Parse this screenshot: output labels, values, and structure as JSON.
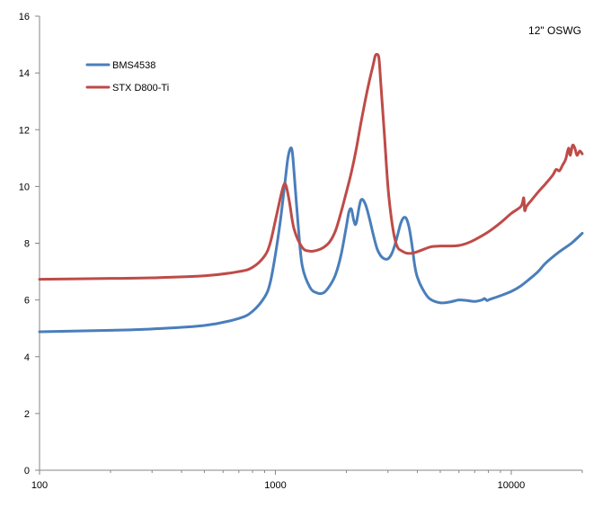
{
  "chart_data": {
    "type": "line",
    "title": "12\" OSWG",
    "xlabel": "",
    "ylabel": "",
    "x_scale": "log",
    "xlim": [
      100,
      20000
    ],
    "ylim": [
      0,
      16
    ],
    "x_ticks": [
      100,
      1000,
      10000
    ],
    "x_tick_labels": [
      "100",
      "1000",
      "10000"
    ],
    "y_ticks": [
      0,
      2,
      4,
      6,
      8,
      10,
      12,
      14,
      16
    ],
    "y_tick_labels": [
      "0",
      "2",
      "4",
      "6",
      "8",
      "10",
      "12",
      "14",
      "16"
    ],
    "grid": "off",
    "legend_position": "top-left",
    "series": [
      {
        "name": "BMS4538",
        "color": "#4a7ebb",
        "x": [
          100,
          200,
          300,
          500,
          700,
          800,
          900,
          950,
          1000,
          1050,
          1100,
          1130,
          1160,
          1180,
          1200,
          1250,
          1300,
          1400,
          1500,
          1600,
          1700,
          1800,
          1900,
          2000,
          2050,
          2100,
          2150,
          2200,
          2300,
          2400,
          2500,
          2600,
          2700,
          2800,
          2900,
          3000,
          3100,
          3200,
          3300,
          3400,
          3500,
          3600,
          3700,
          3800,
          3900,
          4000,
          4200,
          4500,
          5000,
          5500,
          6000,
          6500,
          7000,
          7500,
          7700,
          7900,
          8100,
          9000,
          10000,
          11000,
          12000,
          13000,
          14000,
          16000,
          18000,
          20000
        ],
        "y": [
          4.88,
          4.93,
          4.98,
          5.1,
          5.35,
          5.6,
          6.1,
          6.6,
          7.6,
          8.8,
          10.2,
          11.0,
          11.35,
          11.2,
          10.5,
          8.6,
          7.2,
          6.45,
          6.25,
          6.25,
          6.5,
          6.9,
          7.6,
          8.6,
          9.1,
          9.2,
          8.8,
          8.7,
          9.5,
          9.4,
          8.9,
          8.3,
          7.8,
          7.55,
          7.45,
          7.45,
          7.6,
          7.9,
          8.3,
          8.7,
          8.9,
          8.85,
          8.5,
          7.9,
          7.2,
          6.8,
          6.4,
          6.05,
          5.9,
          5.93,
          6.0,
          5.98,
          5.95,
          6.0,
          6.05,
          5.98,
          6.02,
          6.15,
          6.3,
          6.5,
          6.75,
          7.0,
          7.3,
          7.7,
          8.0,
          8.35
        ]
      },
      {
        "name": "STX D800-Ti",
        "color": "#be4b48",
        "x": [
          100,
          200,
          300,
          500,
          700,
          800,
          900,
          950,
          1000,
          1050,
          1080,
          1100,
          1120,
          1150,
          1200,
          1300,
          1400,
          1500,
          1600,
          1700,
          1800,
          1900,
          2000,
          2100,
          2200,
          2300,
          2400,
          2500,
          2600,
          2650,
          2700,
          2750,
          2800,
          2900,
          3000,
          3100,
          3200,
          3300,
          3400,
          3600,
          3800,
          4000,
          4300,
          4600,
          5000,
          5500,
          6000,
          6500,
          7000,
          8000,
          9000,
          10000,
          11000,
          11300,
          11400,
          11600,
          12000,
          13000,
          14000,
          15000,
          15500,
          16000,
          16500,
          17000,
          17500,
          17800,
          18200,
          18600,
          19000,
          19500,
          20000
        ],
        "y": [
          6.73,
          6.76,
          6.78,
          6.85,
          7.0,
          7.15,
          7.55,
          8.0,
          8.8,
          9.6,
          10.0,
          10.1,
          9.9,
          9.4,
          8.5,
          7.85,
          7.72,
          7.75,
          7.85,
          8.05,
          8.45,
          9.1,
          9.8,
          10.5,
          11.3,
          12.2,
          13.0,
          13.7,
          14.3,
          14.6,
          14.65,
          14.5,
          13.6,
          11.8,
          10.0,
          8.9,
          8.2,
          7.85,
          7.75,
          7.65,
          7.65,
          7.7,
          7.8,
          7.88,
          7.9,
          7.9,
          7.92,
          8.0,
          8.12,
          8.4,
          8.72,
          9.05,
          9.3,
          9.6,
          9.15,
          9.3,
          9.45,
          9.8,
          10.1,
          10.4,
          10.6,
          10.55,
          10.75,
          10.95,
          11.35,
          11.1,
          11.45,
          11.35,
          11.1,
          11.25,
          11.15
        ]
      }
    ]
  }
}
